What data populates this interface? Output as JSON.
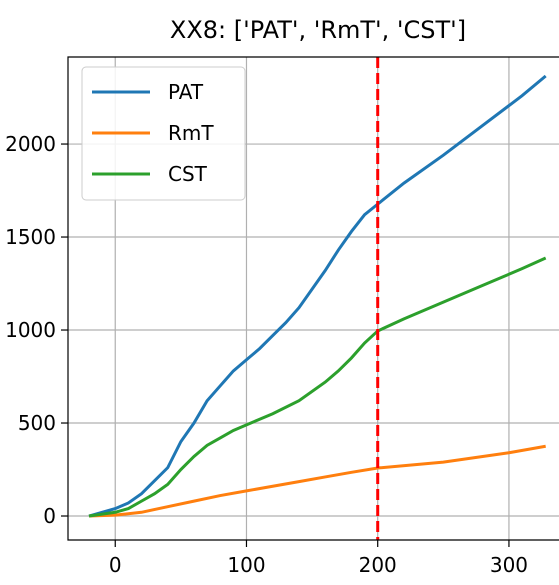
{
  "chart_data": {
    "type": "line",
    "title": "XX8: ['PAT', 'RmT', 'CST']",
    "series": [
      {
        "name": "PAT",
        "color": "#1f77b4",
        "x": [
          -20,
          0,
          10,
          20,
          30,
          40,
          50,
          60,
          70,
          80,
          90,
          100,
          110,
          120,
          130,
          140,
          150,
          160,
          170,
          180,
          190,
          200,
          220,
          250,
          280,
          310,
          328
        ],
        "values": [
          0,
          40,
          70,
          120,
          190,
          260,
          400,
          500,
          620,
          700,
          780,
          840,
          900,
          970,
          1040,
          1120,
          1220,
          1320,
          1430,
          1530,
          1620,
          1677,
          1790,
          1940,
          2100,
          2260,
          2366
        ]
      },
      {
        "name": "RmT",
        "color": "#ff7f0e",
        "x": [
          -20,
          0,
          20,
          40,
          60,
          80,
          100,
          120,
          140,
          160,
          180,
          200,
          250,
          300,
          328
        ],
        "values": [
          0,
          5,
          20,
          50,
          80,
          110,
          135,
          160,
          185,
          210,
          235,
          258,
          290,
          340,
          375
        ]
      },
      {
        "name": "CST",
        "color": "#2ca02c",
        "x": [
          -20,
          0,
          10,
          20,
          30,
          40,
          50,
          60,
          70,
          80,
          90,
          100,
          120,
          140,
          160,
          170,
          180,
          190,
          200,
          220,
          250,
          280,
          310,
          328
        ],
        "values": [
          0,
          20,
          40,
          80,
          120,
          170,
          250,
          320,
          380,
          420,
          460,
          490,
          550,
          620,
          720,
          780,
          850,
          930,
          995,
          1060,
          1150,
          1240,
          1330,
          1387
        ]
      }
    ],
    "vline": {
      "x": 200,
      "color": "#ff0000"
    },
    "xlim": [
      -36,
      345
    ],
    "xticks": [
      0,
      100,
      200,
      300
    ],
    "ylim": [
      -129,
      2468
    ],
    "yticks": [
      0,
      500,
      1000,
      1500,
      2000
    ],
    "grid": true,
    "legend": "upper left"
  }
}
